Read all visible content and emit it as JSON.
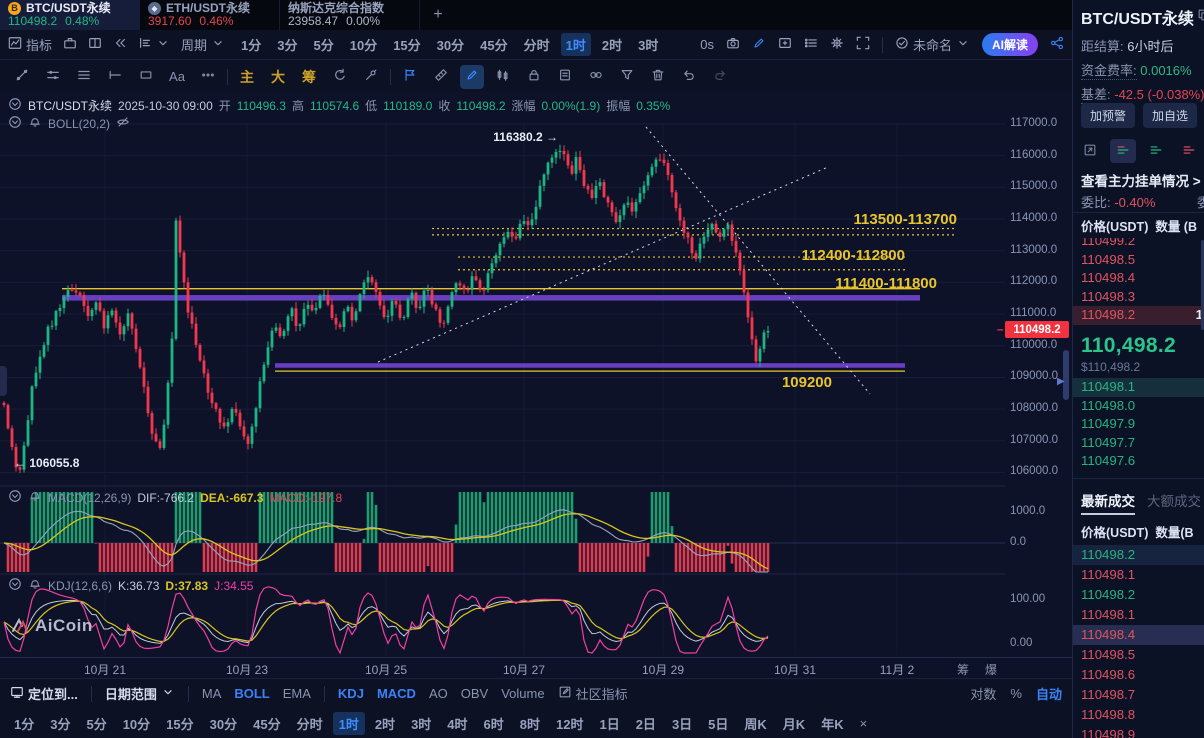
{
  "colors": {
    "up": "#1db584",
    "down": "#f2384e",
    "yellow": "#e9c52c",
    "purple": "#6e42c8",
    "blue": "#3b82f6",
    "tag_red": "#f2333f"
  },
  "tabs": {
    "items": [
      {
        "name": "BTC/USDT永续",
        "price": "110498.2",
        "change": "0.48%",
        "dir": "up"
      },
      {
        "name": "ETH/USDT永续",
        "price": "3917.60",
        "change": "0.46%",
        "dir": "down"
      },
      {
        "name": "纳斯达克综合指数",
        "price": "23958.47",
        "change": "0.00%",
        "dir": "flat"
      }
    ],
    "add": "+"
  },
  "toolbar": {
    "indicator": "指标",
    "period": "周期",
    "timeframes": [
      "1分",
      "3分",
      "5分",
      "10分",
      "15分",
      "30分",
      "45分",
      "分时",
      "1时",
      "2时",
      "3时"
    ],
    "active_tf": "1时",
    "zero": "0s",
    "layout_name": "未命名",
    "ai": "AI解读"
  },
  "draw": {
    "items": [
      {
        "icon": "trendline",
        "name": "trend-line-tool"
      },
      {
        "icon": "parallel",
        "name": "parallel-channel-tool"
      },
      {
        "icon": "threelines",
        "name": "horizontal-lines-tool"
      },
      {
        "icon": "measure",
        "name": "measure-tool"
      },
      {
        "icon": "recttool",
        "name": "rectangle-tool"
      },
      {
        "text": "Aa",
        "name": "text-tool"
      },
      {
        "icon": "dots",
        "name": "more-tools"
      },
      {
        "sep": true
      },
      {
        "text": "主",
        "name": "main-overlay-button",
        "gold": true
      },
      {
        "text": "大",
        "name": "large-overlay-button",
        "gold": true
      },
      {
        "text": "筹",
        "name": "chip-overlay-button",
        "gold": true
      },
      {
        "icon": "refresh",
        "name": "replay-tool"
      },
      {
        "icon": "brush",
        "name": "brush-tool"
      },
      {
        "sep": true
      },
      {
        "icon": "flag",
        "name": "flag-tool",
        "color": "#3b82f6"
      },
      {
        "icon": "ruler",
        "name": "ruler-tool"
      },
      {
        "icon": "pencil",
        "name": "draw-pencil-tool",
        "active": true
      },
      {
        "icon": "pattern",
        "name": "pattern-tool"
      },
      {
        "icon": "lock",
        "name": "lock-tool"
      },
      {
        "icon": "docedit",
        "name": "note-tool"
      },
      {
        "icon": "linktool",
        "name": "link-tool"
      },
      {
        "icon": "funnel",
        "name": "filter-tool"
      },
      {
        "icon": "trash",
        "name": "delete-tool"
      },
      {
        "icon": "undo",
        "name": "undo-button"
      },
      {
        "icon": "redo",
        "name": "redo-button",
        "dim": true
      }
    ]
  },
  "chart": {
    "ohlc": {
      "symbol": "BTC/USDT永续",
      "datetime": "2025-10-30 09:00",
      "o_label": "开",
      "o": "110496.3",
      "h_label": "高",
      "h": "110574.6",
      "l_label": "低",
      "l": "110189.0",
      "c_label": "收",
      "c": "110498.2",
      "chg_label": "涨幅",
      "chg": "0.00%(1.9)",
      "amp_label": "振幅",
      "amp": "0.35%"
    },
    "boll": "BOLL(20,2)",
    "y_axis": [
      "117000.0",
      "116000.0",
      "115000.0",
      "114000.0",
      "113000.0",
      "112000.0",
      "111000.0",
      "110000.0",
      "109000.0",
      "108000.0",
      "107000.0",
      "106000.0"
    ],
    "price_tag": "110498.2",
    "annotations": {
      "peak": "116380.2",
      "arrow_right": "→",
      "low": "106055.8",
      "arrow_left": "←",
      "band1": "113500-113700",
      "band2": "112400-112800",
      "band3": "111400-111800",
      "band4": "109200"
    },
    "macd": {
      "title": "MACD(12,26,9)",
      "dif": "DIF:-766.2",
      "dea": "DEA:-667.3",
      "macd": "MACD:-197.8",
      "axis": [
        "1000.0",
        "0.0"
      ]
    },
    "kdj": {
      "title": "KDJ(12,6,6)",
      "k": "K:36.73",
      "d": "D:37.83",
      "j": "J:34.55",
      "axis": [
        "100.00",
        "0.00"
      ]
    },
    "x_axis": [
      "10月 21",
      "10月 23",
      "10月 25",
      "10月 27",
      "10月 29",
      "10月 31",
      "11月 2"
    ],
    "x_extra": [
      "筹",
      "爆"
    ],
    "watermark": "AiCoin"
  },
  "chart_data": {
    "type": "candlestick",
    "symbol": "BTC/USDT永续",
    "interval": "1时",
    "ylim": [
      105500,
      117500
    ],
    "current_price": 110498.2,
    "peak_label": 116380.2,
    "low_label": 106055.8,
    "levels": {
      "resistance_bands": [
        [
          113500,
          113700
        ],
        [
          112400,
          112800
        ],
        [
          111400,
          111800
        ]
      ],
      "support": 109200
    },
    "anchors": [
      [
        4,
        108200
      ],
      [
        10,
        107000
      ],
      [
        16,
        106300
      ],
      [
        20,
        106056
      ],
      [
        26,
        107200
      ],
      [
        32,
        108600
      ],
      [
        40,
        109600
      ],
      [
        48,
        110500
      ],
      [
        58,
        111200
      ],
      [
        68,
        111700
      ],
      [
        78,
        111800
      ],
      [
        88,
        110900
      ],
      [
        96,
        111400
      ],
      [
        104,
        110600
      ],
      [
        112,
        111100
      ],
      [
        120,
        110300
      ],
      [
        128,
        110900
      ],
      [
        136,
        109900
      ],
      [
        144,
        108600
      ],
      [
        152,
        107300
      ],
      [
        160,
        106900
      ],
      [
        166,
        108000
      ],
      [
        172,
        110200
      ],
      [
        176,
        113900
      ],
      [
        180,
        112800
      ],
      [
        186,
        111500
      ],
      [
        194,
        110300
      ],
      [
        202,
        109300
      ],
      [
        210,
        108400
      ],
      [
        218,
        107800
      ],
      [
        226,
        107200
      ],
      [
        234,
        108200
      ],
      [
        242,
        107300
      ],
      [
        250,
        106900
      ],
      [
        258,
        108500
      ],
      [
        266,
        109600
      ],
      [
        274,
        110700
      ],
      [
        282,
        110200
      ],
      [
        290,
        111200
      ],
      [
        298,
        110500
      ],
      [
        306,
        111500
      ],
      [
        314,
        110800
      ],
      [
        322,
        111800
      ],
      [
        330,
        111100
      ],
      [
        338,
        110400
      ],
      [
        346,
        111300
      ],
      [
        354,
        110700
      ],
      [
        362,
        111800
      ],
      [
        370,
        112300
      ],
      [
        378,
        111400
      ],
      [
        386,
        110600
      ],
      [
        394,
        111500
      ],
      [
        402,
        110800
      ],
      [
        410,
        111700
      ],
      [
        418,
        111000
      ],
      [
        426,
        112000
      ],
      [
        434,
        111200
      ],
      [
        442,
        110500
      ],
      [
        450,
        111400
      ],
      [
        458,
        112100
      ],
      [
        466,
        111500
      ],
      [
        474,
        112300
      ],
      [
        482,
        111700
      ],
      [
        490,
        112500
      ],
      [
        498,
        113100
      ],
      [
        506,
        113700
      ],
      [
        514,
        113200
      ],
      [
        522,
        114100
      ],
      [
        530,
        113600
      ],
      [
        538,
        114700
      ],
      [
        546,
        115500
      ],
      [
        554,
        116000
      ],
      [
        562,
        116380
      ],
      [
        570,
        115400
      ],
      [
        576,
        115800
      ],
      [
        584,
        115100
      ],
      [
        592,
        114600
      ],
      [
        600,
        115200
      ],
      [
        608,
        114500
      ],
      [
        616,
        113900
      ],
      [
        624,
        114600
      ],
      [
        632,
        114200
      ],
      [
        640,
        114900
      ],
      [
        648,
        115500
      ],
      [
        656,
        116000
      ],
      [
        664,
        115700
      ],
      [
        672,
        114800
      ],
      [
        680,
        113900
      ],
      [
        688,
        113300
      ],
      [
        696,
        112800
      ],
      [
        704,
        113400
      ],
      [
        712,
        113900
      ],
      [
        720,
        113400
      ],
      [
        728,
        113800
      ],
      [
        736,
        112900
      ],
      [
        742,
        111900
      ],
      [
        748,
        110900
      ],
      [
        754,
        109900
      ],
      [
        758,
        109350
      ],
      [
        762,
        110300
      ],
      [
        766,
        110500
      ]
    ]
  },
  "bottom": {
    "row1": {
      "locate": "定位到...",
      "date_range": "日期范围",
      "mas": [
        "MA",
        "BOLL",
        "EMA"
      ],
      "mas_on": "BOLL",
      "inds": [
        "KDJ",
        "MACD",
        "AO",
        "OBV",
        "Volume"
      ],
      "inds_on": [
        "KDJ",
        "MACD"
      ],
      "community": "社区指标",
      "right": [
        "对数",
        "%",
        "自动"
      ],
      "right_on": "自动"
    },
    "row2": [
      "1分",
      "3分",
      "5分",
      "10分",
      "15分",
      "30分",
      "45分",
      "分时",
      "1时",
      "2时",
      "3时",
      "4时",
      "6时",
      "8时",
      "12时",
      "1日",
      "2日",
      "3日",
      "5日",
      "周K",
      "月K",
      "年K"
    ],
    "row2_active": "1时",
    "close": "×"
  },
  "sidebar": {
    "title": "BTC/USDT永续",
    "stats": [
      {
        "label": "距结算:",
        "value": "6小时后",
        "cls": "",
        "dotted": false
      },
      {
        "label": "资金费率:",
        "value": "0.0016%",
        "cls": "g",
        "dotted": true
      },
      {
        "label": "基差:",
        "value": "-42.5 (-0.038%)",
        "cls": "r",
        "dotted": true
      }
    ],
    "buttons": [
      "加预警",
      "加自选"
    ],
    "link": "查看主力挂单情况",
    "link_arrow": ">",
    "ratio_label": "委比:",
    "ratio": "-0.40%",
    "ratio_cut": "委",
    "book_header_price": "价格(USDT)",
    "book_header_qty": "数量 (B",
    "asks": [
      {
        "p": "110499.2",
        "cut": true
      },
      {
        "p": "110498.5"
      },
      {
        "p": "110498.4"
      },
      {
        "p": "110498.3"
      },
      {
        "p": "110498.2",
        "hl": true,
        "qty": "1"
      }
    ],
    "last": {
      "price": "110,498.2",
      "usd": "$110,498.2"
    },
    "bids": [
      {
        "p": "110498.1",
        "hl": true
      },
      {
        "p": "110498.0"
      },
      {
        "p": "110497.9"
      },
      {
        "p": "110497.7"
      },
      {
        "p": "110497.6"
      }
    ],
    "trade_tab_active": "最新成交",
    "trade_tab_other": "大额成交",
    "trades_header_price": "价格(USDT)",
    "trades_header_qty": "数量(B",
    "trades": [
      {
        "p": "110498.2",
        "side": "up",
        "hl2": true
      },
      {
        "p": "110498.1",
        "side": "down"
      },
      {
        "p": "110498.2",
        "side": "up"
      },
      {
        "p": "110498.1",
        "side": "down"
      },
      {
        "p": "110498.4",
        "side": "down",
        "hl": true
      },
      {
        "p": "110498.5",
        "side": "down"
      },
      {
        "p": "110498.6",
        "side": "down"
      },
      {
        "p": "110498.7",
        "side": "down"
      },
      {
        "p": "110498.8",
        "side": "down"
      },
      {
        "p": "110498.9",
        "side": "down"
      }
    ]
  }
}
